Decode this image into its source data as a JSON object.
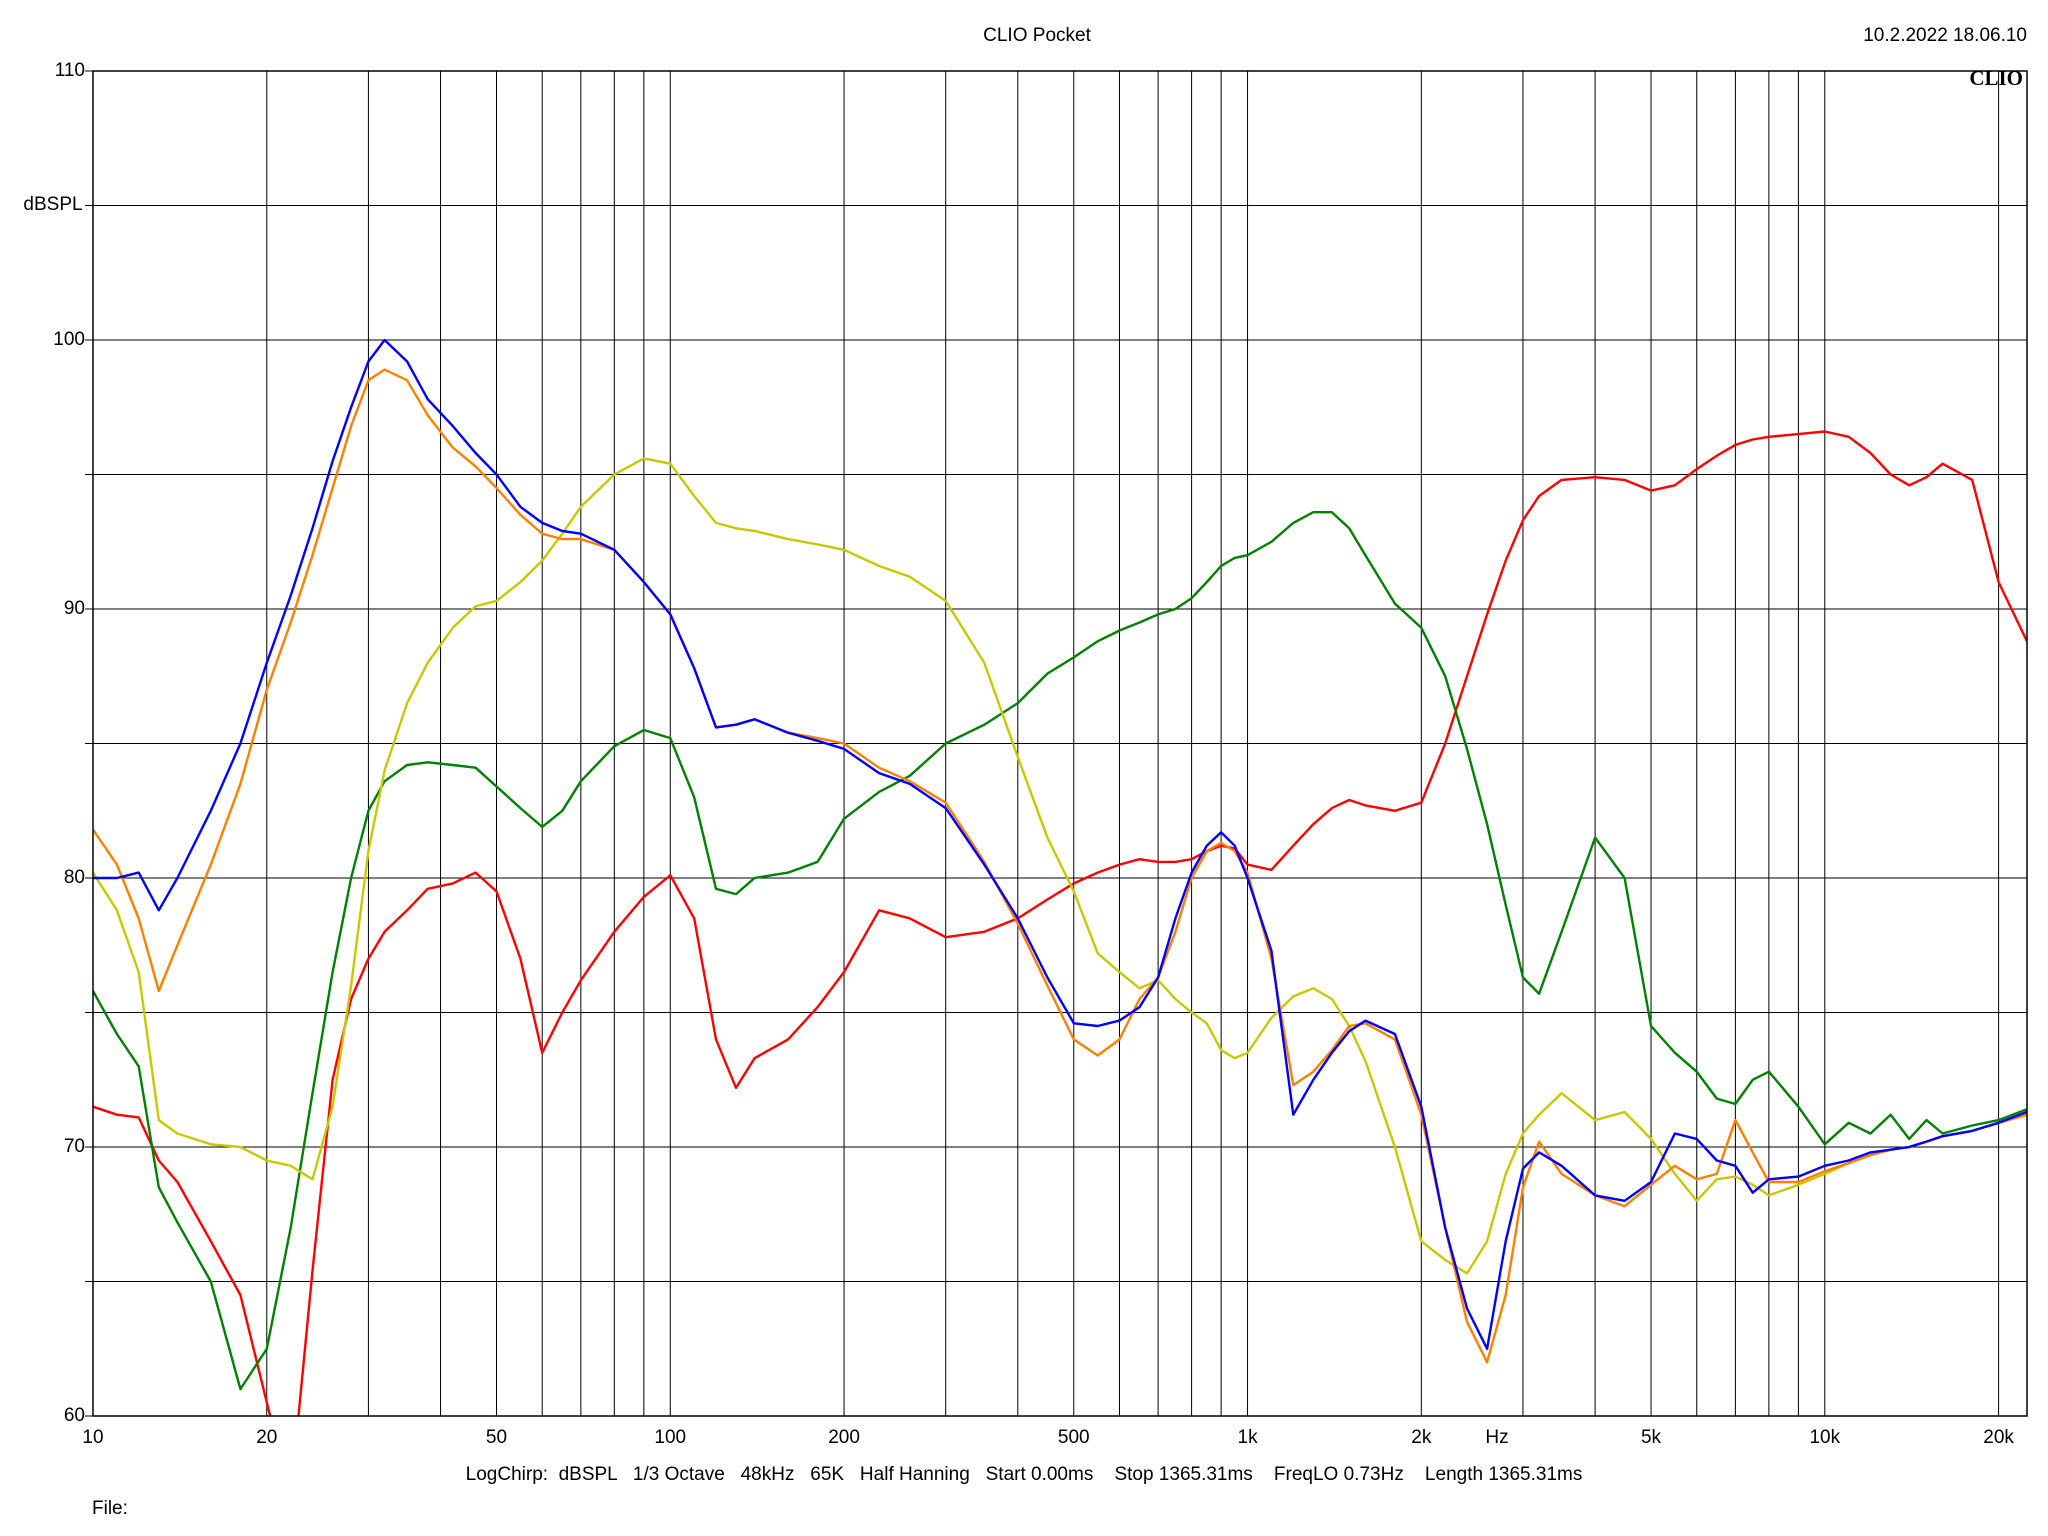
{
  "chart_data": {
    "type": "line",
    "title": "CLIO Pocket",
    "timestamp": "10.2.2022 18.06.10",
    "logo": "CLIO",
    "y_label": "dBSPL",
    "x_label": "Hz",
    "footer": "LogChirp:  dBSPL   1/3 Octave   48kHz   65K   Half Hanning   Start 0.00ms    Stop 1365.31ms    FreqLO 0.73Hz    Length 1365.31ms",
    "file_label": "File:",
    "xscale": "log",
    "grid": true,
    "xlim": [
      10,
      22400
    ],
    "ylim": [
      60,
      110
    ],
    "xticks": [
      10,
      20,
      50,
      100,
      200,
      500,
      {
        "value": 1000,
        "label": "1k"
      },
      {
        "value": 2000,
        "label": "2k"
      },
      {
        "value": 5000,
        "label": "5k"
      },
      {
        "value": 10000,
        "label": "10k"
      },
      {
        "value": 20000,
        "label": "20k"
      }
    ],
    "xminor": [
      30,
      40,
      60,
      70,
      80,
      90,
      300,
      400,
      600,
      700,
      800,
      900,
      3000,
      4000,
      6000,
      7000,
      8000,
      9000
    ],
    "yticks": [
      60,
      70,
      80,
      90,
      100,
      110
    ],
    "yminor": [
      65,
      75,
      85,
      95,
      105
    ],
    "x": [
      10,
      11,
      12,
      13,
      14,
      16,
      18,
      20,
      22,
      24,
      26,
      28,
      30,
      32,
      35,
      38,
      42,
      46,
      50,
      55,
      60,
      65,
      70,
      80,
      90,
      100,
      110,
      120,
      130,
      140,
      160,
      180,
      200,
      230,
      260,
      300,
      350,
      400,
      450,
      500,
      550,
      600,
      650,
      700,
      750,
      800,
      850,
      900,
      950,
      1000,
      1100,
      1200,
      1300,
      1400,
      1500,
      1600,
      1800,
      2000,
      2200,
      2400,
      2600,
      2800,
      3000,
      3200,
      3500,
      4000,
      4500,
      5000,
      5500,
      6000,
      6500,
      7000,
      7500,
      8000,
      9000,
      10000,
      11000,
      12000,
      13000,
      14000,
      15000,
      16000,
      18000,
      20000,
      22400
    ],
    "series": [
      {
        "color": "#ff0000",
        "values": [
          71.5,
          71.2,
          71.1,
          69.5,
          68.7,
          66.5,
          64.5,
          60.5,
          57.0,
          65.4,
          72.5,
          75.5,
          77.0,
          78.0,
          78.8,
          79.6,
          79.8,
          80.2,
          79.5,
          77.0,
          73.5,
          75.0,
          76.2,
          78.0,
          79.3,
          80.1,
          78.5,
          74.0,
          72.2,
          73.3,
          74.0,
          75.2,
          76.5,
          78.8,
          78.5,
          77.8,
          78.0,
          78.5,
          79.2,
          79.8,
          80.2,
          80.5,
          80.7,
          80.6,
          80.6,
          80.7,
          81.0,
          81.2,
          81.1,
          80.5,
          80.3,
          81.2,
          82.0,
          82.6,
          82.9,
          82.7,
          82.5,
          82.8,
          85.0,
          87.5,
          89.8,
          91.8,
          93.3,
          94.2,
          94.8,
          94.9,
          94.8,
          94.4,
          94.6,
          95.2,
          95.7,
          96.1,
          96.3,
          96.4,
          96.5,
          96.6,
          96.4,
          95.8,
          95.0,
          94.6,
          94.9,
          95.4,
          94.8,
          91.0,
          88.8
        ]
      },
      {
        "color": "#008000",
        "values": [
          75.8,
          74.2,
          73.0,
          68.5,
          67.2,
          65.0,
          61.0,
          62.5,
          67.0,
          72.0,
          76.5,
          80.0,
          82.5,
          83.6,
          84.2,
          84.3,
          84.2,
          84.1,
          83.4,
          82.6,
          81.9,
          82.5,
          83.6,
          84.9,
          85.5,
          85.2,
          83.0,
          79.6,
          79.4,
          80.0,
          80.2,
          80.6,
          82.2,
          83.2,
          83.8,
          85.0,
          85.7,
          86.5,
          87.6,
          88.2,
          88.8,
          89.2,
          89.5,
          89.8,
          90.0,
          90.4,
          91.0,
          91.6,
          91.9,
          92.0,
          92.5,
          93.2,
          93.6,
          93.6,
          93.0,
          92.0,
          90.2,
          89.3,
          87.5,
          84.8,
          82.0,
          79.0,
          76.3,
          75.7,
          78.0,
          81.5,
          80.0,
          74.5,
          73.5,
          72.8,
          71.8,
          71.6,
          72.5,
          72.8,
          71.5,
          70.1,
          70.9,
          70.5,
          71.2,
          70.3,
          71.0,
          70.5,
          70.8,
          71.0,
          71.4
        ]
      },
      {
        "color": "#c8c800",
        "values": [
          80.2,
          78.8,
          76.5,
          71.0,
          70.5,
          70.1,
          70.0,
          69.5,
          69.3,
          68.8,
          71.5,
          76.0,
          81.0,
          84.0,
          86.5,
          88.0,
          89.3,
          90.1,
          90.3,
          91.0,
          91.8,
          92.8,
          93.8,
          95.0,
          95.6,
          95.4,
          94.2,
          93.2,
          93.0,
          92.9,
          92.6,
          92.4,
          92.2,
          91.6,
          91.2,
          90.3,
          88.0,
          84.5,
          81.5,
          79.5,
          77.2,
          76.5,
          75.9,
          76.2,
          75.5,
          75.0,
          74.6,
          73.6,
          73.3,
          73.5,
          74.8,
          75.6,
          75.9,
          75.5,
          74.5,
          73.2,
          70.0,
          66.5,
          65.8,
          65.3,
          66.5,
          69.0,
          70.5,
          71.2,
          72.0,
          71.0,
          71.3,
          70.3,
          69.0,
          68.0,
          68.8,
          68.9,
          68.6,
          68.2,
          68.6,
          69.0,
          69.4,
          69.7,
          69.9,
          70.0,
          70.2,
          70.4,
          70.6,
          70.9,
          71.2
        ]
      },
      {
        "color": "#ff8000",
        "values": [
          81.8,
          80.5,
          78.5,
          75.8,
          77.5,
          80.5,
          83.5,
          87.0,
          89.5,
          92.0,
          94.5,
          96.8,
          98.5,
          98.9,
          98.5,
          97.2,
          96.0,
          95.3,
          94.5,
          93.5,
          92.8,
          92.6,
          92.6,
          92.2,
          91.0,
          89.8,
          87.8,
          85.6,
          85.7,
          85.9,
          85.4,
          85.2,
          85.0,
          84.1,
          83.6,
          82.8,
          80.6,
          78.3,
          76.0,
          74.0,
          73.4,
          74.0,
          75.5,
          76.3,
          78.0,
          80.0,
          81.0,
          81.3,
          81.0,
          80.2,
          77.0,
          72.3,
          72.8,
          73.6,
          74.5,
          74.6,
          74.0,
          71.2,
          67.0,
          63.5,
          62.0,
          64.5,
          68.5,
          70.2,
          69.0,
          68.2,
          67.8,
          68.6,
          69.3,
          68.8,
          69.0,
          71.0,
          69.8,
          68.7,
          68.7,
          69.1,
          69.4,
          69.7,
          69.9,
          70.0,
          70.2,
          70.4,
          70.6,
          70.9,
          71.2
        ]
      },
      {
        "color": "#0000ff",
        "values": [
          80.0,
          80.0,
          80.2,
          78.8,
          80.0,
          82.5,
          85.0,
          88.0,
          90.5,
          93.0,
          95.5,
          97.5,
          99.2,
          100.0,
          99.2,
          97.8,
          96.8,
          95.8,
          95.0,
          93.8,
          93.2,
          92.9,
          92.8,
          92.2,
          91.0,
          89.8,
          87.8,
          85.6,
          85.7,
          85.9,
          85.4,
          85.1,
          84.8,
          83.9,
          83.5,
          82.6,
          80.5,
          78.5,
          76.3,
          74.6,
          74.5,
          74.7,
          75.2,
          76.3,
          78.5,
          80.2,
          81.2,
          81.7,
          81.2,
          80.0,
          77.3,
          71.2,
          72.5,
          73.5,
          74.3,
          74.7,
          74.2,
          71.5,
          67.0,
          64.0,
          62.5,
          66.5,
          69.2,
          69.8,
          69.3,
          68.2,
          68.0,
          68.7,
          70.5,
          70.3,
          69.5,
          69.3,
          68.3,
          68.8,
          68.9,
          69.3,
          69.5,
          69.8,
          69.9,
          70.0,
          70.2,
          70.4,
          70.6,
          70.9,
          71.3
        ]
      }
    ]
  }
}
